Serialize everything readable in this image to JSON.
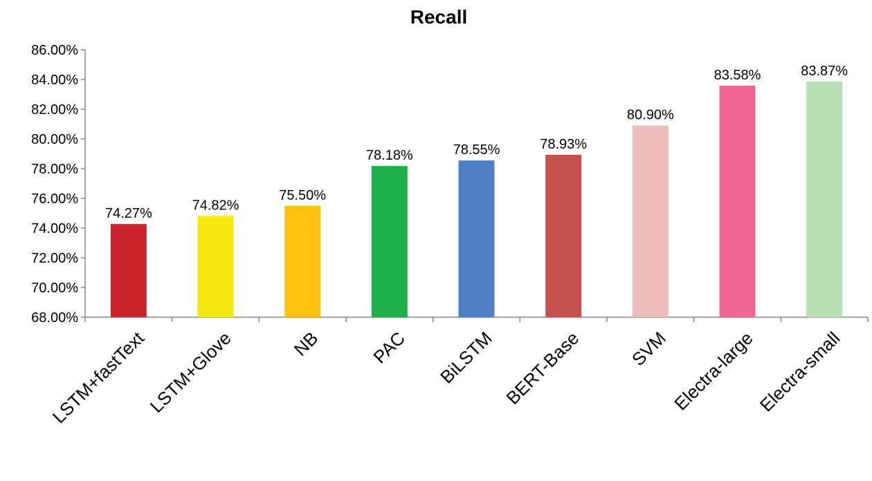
{
  "chart_data": {
    "type": "bar",
    "title": "Recall",
    "xlabel": "",
    "ylabel": "",
    "ylim": [
      68,
      86
    ],
    "ytick_step": 2,
    "y_tick_labels": [
      "68.00%",
      "70.00%",
      "72.00%",
      "74.00%",
      "76.00%",
      "78.00%",
      "80.00%",
      "82.00%",
      "84.00%",
      "86.00%"
    ],
    "categories": [
      "LSTM+fastText",
      "LSTM+Glove",
      "NB",
      "PAC",
      "BiLSTM",
      "BERT-Base",
      "SVM",
      "Electra-large",
      "Electra-small"
    ],
    "values": [
      74.27,
      74.82,
      75.5,
      78.18,
      78.55,
      78.93,
      80.9,
      83.58,
      83.87
    ],
    "data_labels": [
      "74.27%",
      "74.82%",
      "75.50%",
      "78.18%",
      "78.55%",
      "78.93%",
      "80.90%",
      "83.58%",
      "83.87%"
    ],
    "colors": [
      "#c9242b",
      "#f7e713",
      "#fcc20e",
      "#1fb04b",
      "#5080c3",
      "#c55150",
      "#efbcbc",
      "#ef6697",
      "#b6dfb6"
    ],
    "grid": false,
    "legend": "none"
  }
}
